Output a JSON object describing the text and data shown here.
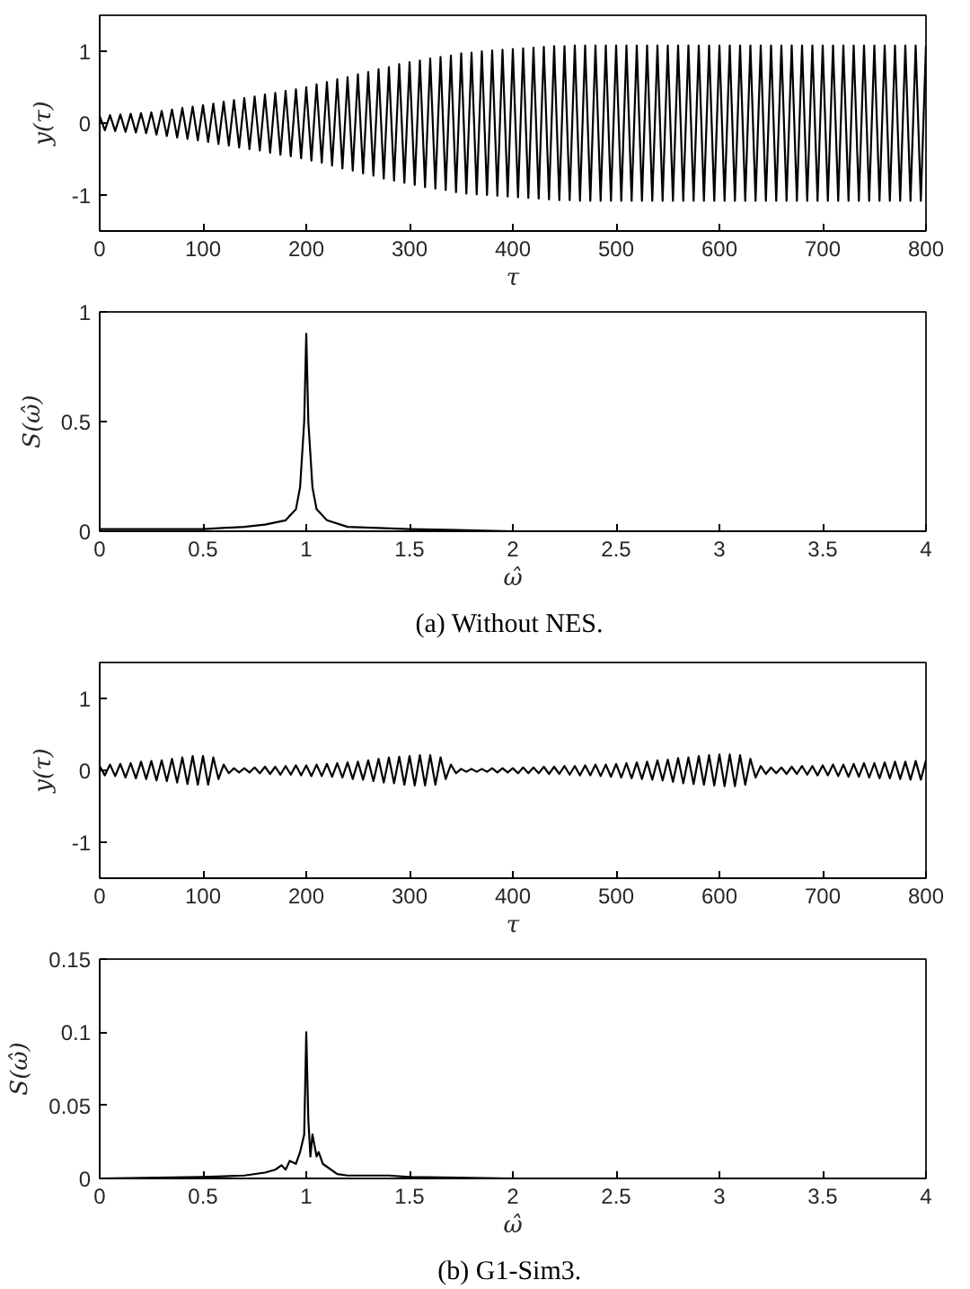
{
  "chart_data": [
    {
      "type": "line",
      "xlabel": "τ",
      "ylabel": "y(τ)",
      "xlim": [
        0,
        800
      ],
      "ylim": [
        -1.5,
        1.5
      ],
      "xticks": [
        0,
        100,
        200,
        300,
        400,
        500,
        600,
        700,
        800
      ],
      "yticks": [
        -1,
        0,
        1
      ],
      "grid": false,
      "x": [
        0,
        5,
        10,
        15,
        20,
        25,
        30,
        35,
        40,
        45,
        50,
        55,
        60,
        65,
        70,
        75,
        80,
        85,
        90,
        95,
        100,
        105,
        110,
        115,
        120,
        125,
        130,
        135,
        140,
        145,
        150,
        155,
        160,
        165,
        170,
        175,
        180,
        185,
        190,
        195,
        200,
        205,
        210,
        215,
        220,
        225,
        230,
        235,
        240,
        245,
        250,
        255,
        260,
        265,
        270,
        275,
        280,
        285,
        290,
        295,
        300,
        305,
        310,
        315,
        320,
        325,
        330,
        335,
        340,
        345,
        350,
        355,
        360,
        365,
        370,
        375,
        380,
        385,
        390,
        395,
        400,
        405,
        410,
        415,
        420,
        425,
        430,
        435,
        440,
        445,
        450,
        455,
        460,
        465,
        470,
        475,
        480,
        485,
        490,
        495,
        500,
        505,
        510,
        515,
        520,
        525,
        530,
        535,
        540,
        545,
        550,
        555,
        560,
        565,
        570,
        575,
        580,
        585,
        590,
        595,
        600,
        605,
        610,
        615,
        620,
        625,
        630,
        635,
        640,
        645,
        650,
        655,
        660,
        665,
        670,
        675,
        680,
        685,
        690,
        695,
        700,
        705,
        710,
        715,
        720,
        725,
        730,
        735,
        740,
        745,
        750,
        755,
        760,
        765,
        770,
        775,
        780,
        785,
        790,
        795,
        800
      ],
      "series": [
        {
          "color": "#000000",
          "values": [
            0.1,
            -0.1,
            0.11,
            -0.11,
            0.12,
            -0.12,
            0.13,
            -0.13,
            0.14,
            -0.14,
            0.15,
            -0.16,
            0.17,
            -0.18,
            0.19,
            -0.2,
            0.21,
            -0.22,
            0.23,
            -0.24,
            0.25,
            -0.26,
            0.27,
            -0.29,
            0.3,
            -0.31,
            0.32,
            -0.34,
            0.35,
            -0.36,
            0.37,
            -0.38,
            0.4,
            -0.41,
            0.42,
            -0.44,
            0.45,
            -0.46,
            0.47,
            -0.49,
            0.5,
            -0.52,
            0.54,
            -0.55,
            0.57,
            -0.59,
            0.61,
            -0.63,
            0.64,
            -0.66,
            0.68,
            -0.7,
            0.71,
            -0.73,
            0.75,
            -0.77,
            0.78,
            -0.8,
            0.82,
            -0.83,
            0.85,
            -0.86,
            0.87,
            -0.89,
            0.9,
            -0.91,
            0.92,
            -0.93,
            0.94,
            -0.96,
            0.97,
            -0.98,
            0.98,
            -0.99,
            1,
            -1,
            1.01,
            -1.01,
            1.02,
            -1.02,
            1.03,
            -1.03,
            1.04,
            -1.04,
            1.05,
            -1.05,
            1.06,
            -1.06,
            1.07,
            -1.07,
            1.07,
            -1.07,
            1.08,
            -1.08,
            1.08,
            -1.08,
            1.08,
            -1.08,
            1.08,
            -1.08,
            1.08,
            -1.08,
            1.08,
            -1.08,
            1.08,
            -1.08,
            1.08,
            -1.08,
            1.08,
            -1.08,
            1.08,
            -1.08,
            1.08,
            -1.08,
            1.08,
            -1.08,
            1.08,
            -1.08,
            1.08,
            -1.08,
            1.08,
            -1.08,
            1.08,
            -1.08,
            1.08,
            -1.08,
            1.08,
            -1.08,
            1.08,
            -1.08,
            1.08,
            -1.08,
            1.08,
            -1.08,
            1.08,
            -1.08,
            1.08,
            -1.08,
            1.08,
            -1.08,
            1.08,
            -1.08,
            1.08,
            -1.08,
            1.08,
            -1.08,
            1.08,
            -1.08,
            1.08,
            -1.08,
            1.08,
            -1.08,
            1.08,
            -1.08,
            1.08,
            -1.08,
            1.08,
            -1.08,
            1.08,
            -1.08,
            1.08
          ]
        }
      ]
    },
    {
      "type": "line",
      "xlabel": "ω̂",
      "ylabel": "S(ω̂)",
      "xlim": [
        0,
        4
      ],
      "ylim": [
        0,
        1
      ],
      "xticks": [
        0,
        0.5,
        1,
        1.5,
        2,
        2.5,
        3,
        3.5,
        4
      ],
      "yticks": [
        0,
        0.5,
        1
      ],
      "grid": false,
      "annotations": [
        "(a)  Without NES."
      ],
      "x": [
        0,
        0.5,
        0.7,
        0.8,
        0.9,
        0.95,
        0.97,
        0.99,
        1.0,
        1.01,
        1.03,
        1.05,
        1.1,
        1.2,
        1.5,
        2,
        3,
        4
      ],
      "series": [
        {
          "color": "#000000",
          "values": [
            0.01,
            0.01,
            0.02,
            0.03,
            0.05,
            0.1,
            0.2,
            0.5,
            0.9,
            0.5,
            0.2,
            0.1,
            0.05,
            0.02,
            0.01,
            0,
            0,
            0
          ]
        }
      ]
    },
    {
      "type": "line",
      "xlabel": "τ",
      "ylabel": "y(τ)",
      "xlim": [
        0,
        800
      ],
      "ylim": [
        -1.5,
        1.5
      ],
      "xticks": [
        0,
        100,
        200,
        300,
        400,
        500,
        600,
        700,
        800
      ],
      "yticks": [
        -1,
        0,
        1
      ],
      "grid": false,
      "x": [
        0,
        5,
        10,
        15,
        20,
        25,
        30,
        35,
        40,
        45,
        50,
        55,
        60,
        65,
        70,
        75,
        80,
        85,
        90,
        95,
        100,
        105,
        110,
        115,
        120,
        125,
        130,
        135,
        140,
        145,
        150,
        155,
        160,
        165,
        170,
        175,
        180,
        185,
        190,
        195,
        200,
        205,
        210,
        215,
        220,
        225,
        230,
        235,
        240,
        245,
        250,
        255,
        260,
        265,
        270,
        275,
        280,
        285,
        290,
        295,
        300,
        305,
        310,
        315,
        320,
        325,
        330,
        335,
        340,
        345,
        350,
        355,
        360,
        365,
        370,
        375,
        380,
        385,
        390,
        395,
        400,
        405,
        410,
        415,
        420,
        425,
        430,
        435,
        440,
        445,
        450,
        455,
        460,
        465,
        470,
        475,
        480,
        485,
        490,
        495,
        500,
        505,
        510,
        515,
        520,
        525,
        530,
        535,
        540,
        545,
        550,
        555,
        560,
        565,
        570,
        575,
        580,
        585,
        590,
        595,
        600,
        605,
        610,
        615,
        620,
        625,
        630,
        635,
        640,
        645,
        650,
        655,
        660,
        665,
        670,
        675,
        680,
        685,
        690,
        695,
        700,
        705,
        710,
        715,
        720,
        725,
        730,
        735,
        740,
        745,
        750,
        755,
        760,
        765,
        770,
        775,
        780,
        785,
        790,
        795,
        800
      ],
      "series": [
        {
          "color": "#000000",
          "values": [
            0.06,
            -0.07,
            0.08,
            -0.08,
            0.09,
            -0.1,
            0.1,
            -0.11,
            0.12,
            -0.12,
            0.13,
            -0.14,
            0.14,
            -0.15,
            0.16,
            -0.17,
            0.18,
            -0.19,
            0.2,
            -0.2,
            0.2,
            -0.2,
            0.18,
            -0.12,
            0.08,
            -0.04,
            0.03,
            -0.03,
            0.03,
            -0.03,
            0.04,
            -0.04,
            0.05,
            -0.05,
            0.05,
            -0.06,
            0.06,
            -0.06,
            0.07,
            -0.07,
            0.07,
            -0.08,
            0.08,
            -0.08,
            0.09,
            -0.09,
            0.1,
            -0.1,
            0.11,
            -0.12,
            0.12,
            -0.13,
            0.14,
            -0.15,
            0.16,
            -0.17,
            0.18,
            -0.18,
            0.19,
            -0.2,
            0.2,
            -0.21,
            0.21,
            -0.21,
            0.21,
            -0.2,
            0.18,
            -0.12,
            0.08,
            -0.04,
            0.02,
            -0.02,
            0.02,
            -0.02,
            0.02,
            -0.02,
            0.03,
            -0.03,
            0.03,
            -0.03,
            0.03,
            -0.04,
            0.04,
            -0.04,
            0.04,
            -0.04,
            0.05,
            -0.05,
            0.05,
            -0.05,
            0.06,
            -0.06,
            0.06,
            -0.07,
            0.07,
            -0.07,
            0.08,
            -0.08,
            0.08,
            -0.09,
            0.09,
            -0.1,
            0.1,
            -0.11,
            0.11,
            -0.12,
            0.12,
            -0.13,
            0.14,
            -0.14,
            0.15,
            -0.16,
            0.17,
            -0.18,
            0.18,
            -0.19,
            0.2,
            -0.2,
            0.21,
            -0.21,
            0.22,
            -0.22,
            0.22,
            -0.22,
            0.21,
            -0.2,
            0.16,
            -0.1,
            0.06,
            -0.05,
            0.04,
            -0.04,
            0.04,
            -0.05,
            0.05,
            -0.05,
            0.06,
            -0.06,
            0.06,
            -0.07,
            0.07,
            -0.07,
            0.08,
            -0.08,
            0.08,
            -0.09,
            0.09,
            -0.09,
            0.1,
            -0.1,
            0.1,
            -0.11,
            0.11,
            -0.11,
            0.12,
            -0.12,
            0.12,
            -0.13,
            0.13,
            -0.13,
            0.14
          ]
        }
      ]
    },
    {
      "type": "line",
      "xlabel": "ω̂",
      "ylabel": "S(ω̂)",
      "xlim": [
        0,
        4
      ],
      "ylim": [
        0,
        0.15
      ],
      "xticks": [
        0,
        0.5,
        1,
        1.5,
        2,
        2.5,
        3,
        3.5,
        4
      ],
      "yticks": [
        0,
        0.05,
        0.1,
        0.15
      ],
      "grid": false,
      "annotations": [
        "(b)  G1-Sim3."
      ],
      "x": [
        0,
        0.5,
        0.7,
        0.8,
        0.85,
        0.88,
        0.9,
        0.92,
        0.95,
        0.97,
        0.99,
        1.0,
        1.01,
        1.02,
        1.03,
        1.05,
        1.06,
        1.08,
        1.1,
        1.15,
        1.2,
        1.3,
        1.4,
        1.5,
        2,
        4
      ],
      "series": [
        {
          "color": "#000000",
          "values": [
            0,
            0.001,
            0.002,
            0.004,
            0.006,
            0.009,
            0.006,
            0.012,
            0.01,
            0.018,
            0.03,
            0.1,
            0.04,
            0.015,
            0.03,
            0.015,
            0.018,
            0.01,
            0.008,
            0.003,
            0.002,
            0.002,
            0.002,
            0.001,
            0,
            0
          ]
        }
      ]
    }
  ]
}
